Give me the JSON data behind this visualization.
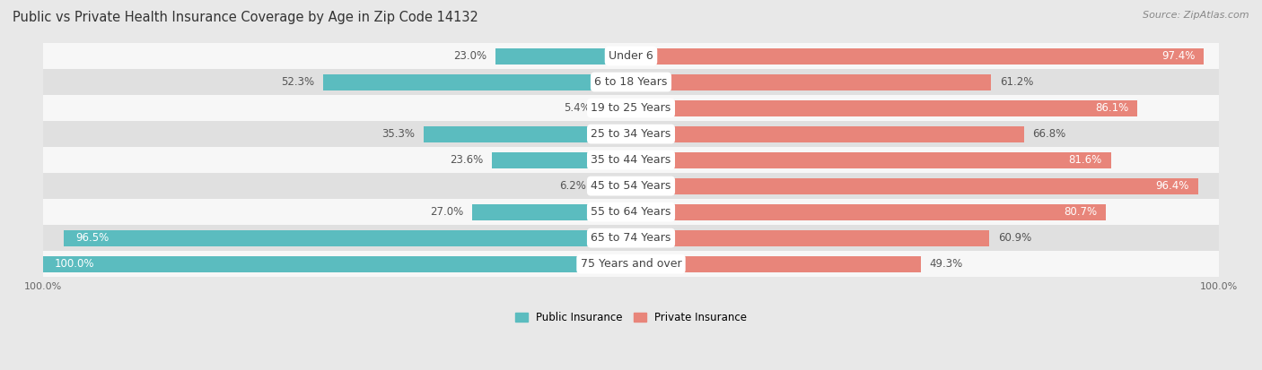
{
  "title": "Public vs Private Health Insurance Coverage by Age in Zip Code 14132",
  "source": "Source: ZipAtlas.com",
  "categories": [
    "Under 6",
    "6 to 18 Years",
    "19 to 25 Years",
    "25 to 34 Years",
    "35 to 44 Years",
    "45 to 54 Years",
    "55 to 64 Years",
    "65 to 74 Years",
    "75 Years and over"
  ],
  "public_values": [
    23.0,
    52.3,
    5.4,
    35.3,
    23.6,
    6.2,
    27.0,
    96.5,
    100.0
  ],
  "private_values": [
    97.4,
    61.2,
    86.1,
    66.8,
    81.6,
    96.4,
    80.7,
    60.9,
    49.3
  ],
  "public_color": "#5bbcbf",
  "private_color": "#e8857a",
  "bg_color": "#e8e8e8",
  "row_light": "#f7f7f7",
  "row_dark": "#e0e0e0",
  "title_fontsize": 10.5,
  "label_fontsize": 8.5,
  "cat_fontsize": 9,
  "tick_fontsize": 8,
  "source_fontsize": 8,
  "bar_height": 0.62,
  "legend_labels": [
    "Public Insurance",
    "Private Insurance"
  ]
}
